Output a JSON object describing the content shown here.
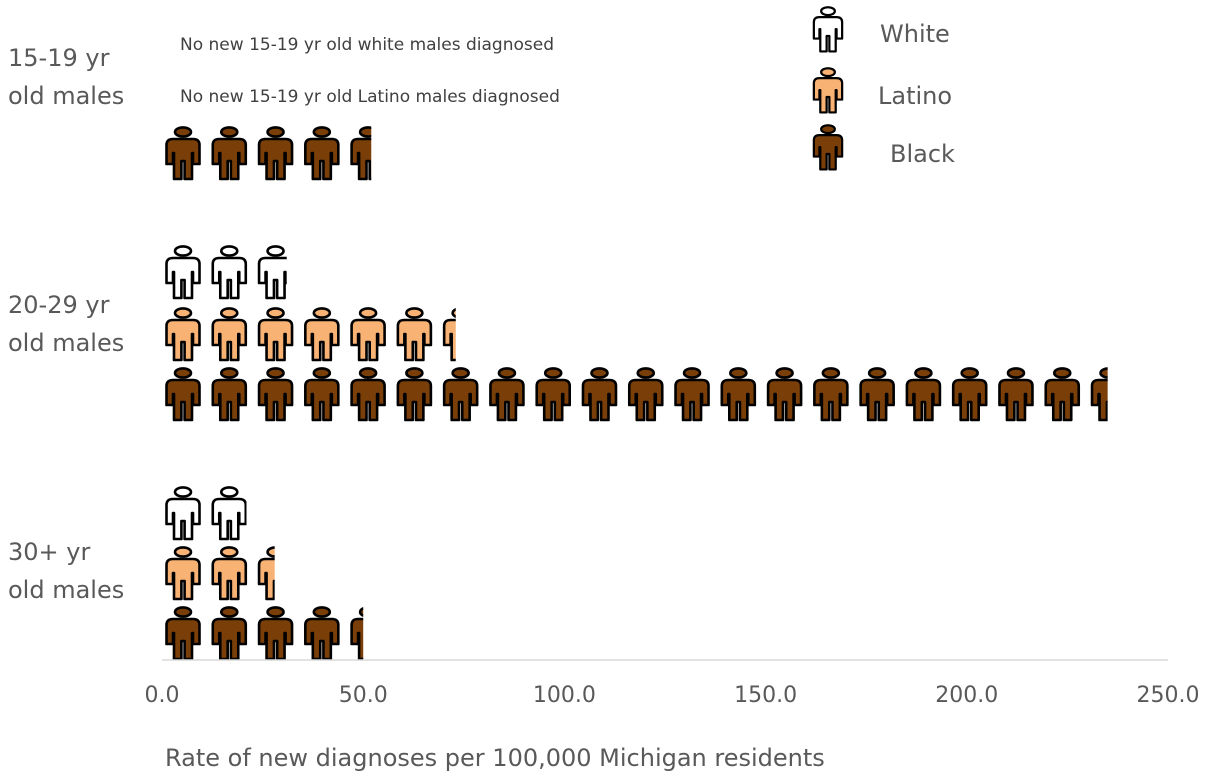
{
  "chart_data": {
    "type": "bar",
    "style": "pictograph",
    "orientation": "horizontal",
    "categories": [
      "15-19 yr old males",
      "20-29 yr old males",
      "30+ yr old males"
    ],
    "category_label_lines": [
      [
        "15-19 yr",
        "old males"
      ],
      [
        "20-29 yr",
        "old males"
      ],
      [
        "30+ yr",
        "old males"
      ]
    ],
    "series": [
      {
        "name": "White",
        "color": "#ffffff",
        "values": [
          0,
          31,
          21
        ]
      },
      {
        "name": "Latino",
        "color": "#f8b274",
        "values": [
          0,
          73,
          28
        ]
      },
      {
        "name": "Black",
        "color": "#7a3e08",
        "values": [
          52,
          235,
          50
        ]
      }
    ],
    "xlabel": "Rate of new diagnoses per 100,000 Michigan residents",
    "xlim": [
      0,
      250
    ],
    "xticks": [
      0,
      50,
      100,
      150,
      200,
      250
    ],
    "xtick_labels": [
      "0.0",
      "50.0",
      "100.0",
      "150.0",
      "200.0",
      "250.0"
    ],
    "notes": [
      "No new 15-19 yr old white males diagnosed",
      "No new 15-19 yr old Latino males diagnosed"
    ],
    "icon": "person-icon",
    "units_per_icon": 11.5,
    "legend_position": "top-right",
    "grid": false
  }
}
